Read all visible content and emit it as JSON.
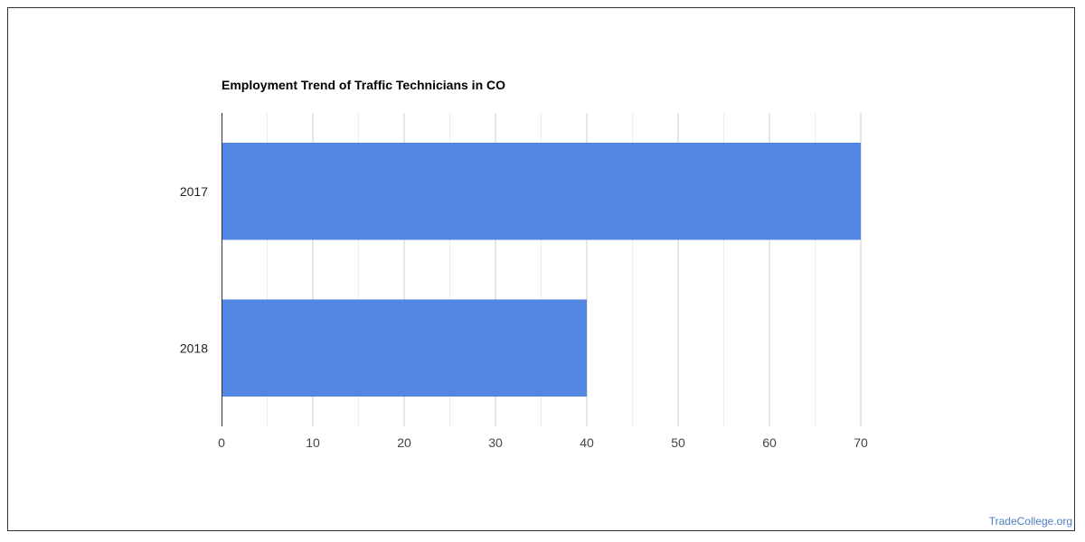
{
  "chart_data": {
    "type": "bar",
    "orientation": "horizontal",
    "title": "Employment Trend of Traffic Technicians in CO",
    "categories": [
      "2017",
      "2018"
    ],
    "values": [
      70,
      40
    ],
    "xlim": [
      0,
      70
    ],
    "x_ticks": [
      "0",
      "10",
      "20",
      "30",
      "40",
      "50",
      "60",
      "70"
    ],
    "xlabel": "",
    "ylabel": "",
    "grid": true,
    "legend": "none",
    "bar_color": "#5387e3"
  },
  "watermark": "TradeCollege.org"
}
